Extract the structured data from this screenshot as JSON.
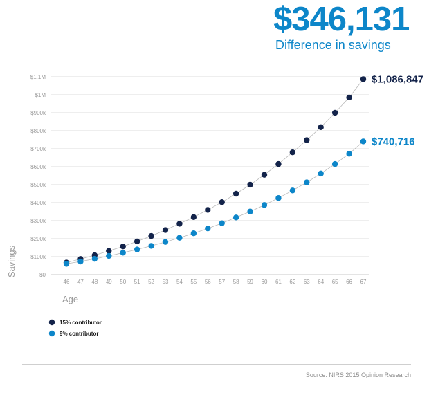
{
  "headline": {
    "amount": "$346,131",
    "caption": "Difference in savings"
  },
  "colors": {
    "dark": "#13234a",
    "light": "#0d86c9",
    "grid": "#dedede",
    "curve": "#b8b8b8"
  },
  "chart_data": {
    "type": "scatter",
    "title": "$346,131",
    "subtitle": "Difference in savings",
    "xlabel": "Age",
    "ylabel": "Savings",
    "xlim": [
      46,
      67
    ],
    "ylim": [
      0,
      1100000
    ],
    "x": [
      46,
      47,
      48,
      49,
      50,
      51,
      52,
      53,
      54,
      55,
      56,
      57,
      58,
      59,
      60,
      61,
      62,
      63,
      64,
      65,
      66,
      67
    ],
    "y_ticks": [
      0,
      100000,
      200000,
      300000,
      400000,
      500000,
      600000,
      700000,
      800000,
      900000,
      1000000,
      1100000
    ],
    "y_tick_labels": [
      "$0",
      "$100k",
      "$200k",
      "$300k",
      "$400k",
      "$500k",
      "$600k",
      "$700k",
      "$800k",
      "$900k",
      "$1M",
      "$1.1M"
    ],
    "grid": true,
    "series": [
      {
        "name": "15% contributor",
        "color": "#13234a",
        "end_label": "$1,086,847",
        "values": [
          67000,
          87000,
          108000,
          132000,
          157000,
          185000,
          215000,
          248000,
          283000,
          320000,
          360000,
          403000,
          450000,
          500000,
          555000,
          615000,
          680000,
          748000,
          820000,
          900000,
          985000,
          1086847
        ]
      },
      {
        "name": "9% contributor",
        "color": "#0d86c9",
        "end_label": "$740,716",
        "values": [
          60000,
          73000,
          88000,
          104000,
          122000,
          140000,
          160000,
          182000,
          205000,
          230000,
          257000,
          286000,
          318000,
          351000,
          387000,
          426000,
          468000,
          513000,
          562000,
          615000,
          672000,
          740716
        ]
      }
    ],
    "legend_position": "bottom-left"
  },
  "source": "Source: NIRS 2015 Opinion Research"
}
